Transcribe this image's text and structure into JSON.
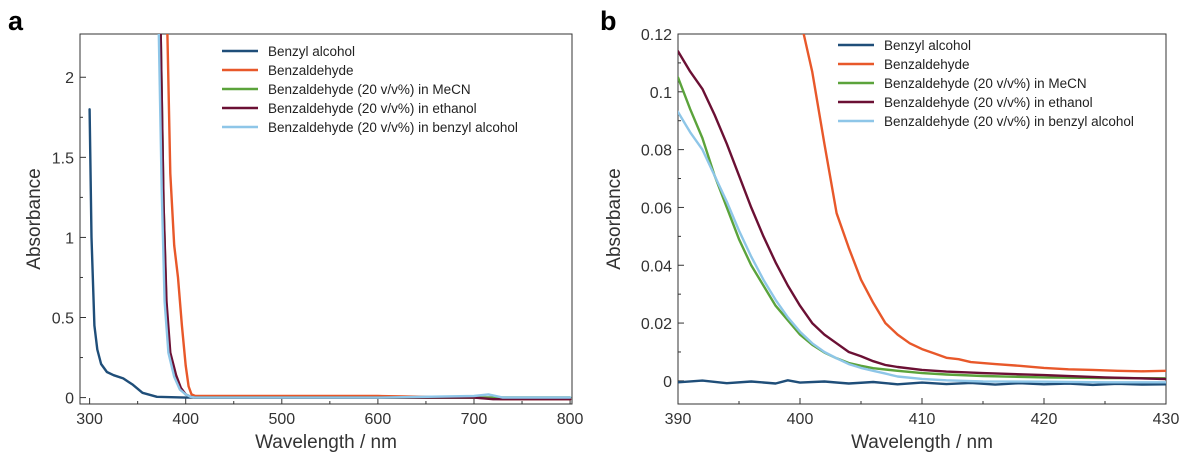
{
  "chart_data": [
    {
      "panel": "a",
      "type": "line",
      "xlabel": "Wavelength / nm",
      "ylabel": "Absorbance",
      "xlim": [
        290,
        802
      ],
      "ylim": [
        -0.04,
        2.27
      ],
      "xticks": [
        300,
        400,
        500,
        600,
        700,
        800
      ],
      "xtick_labels": [
        "300",
        "400",
        "500",
        "600",
        "700",
        "800"
      ],
      "yticks": [
        0,
        0.5,
        1,
        1.5,
        2
      ],
      "ytick_labels": [
        "0",
        "0.5",
        "1",
        "1.5",
        "2"
      ],
      "grid": false,
      "legend_position": "top-right",
      "series": [
        {
          "name": "Benzyl alcohol",
          "color": "#1f4e79",
          "points": [
            [
              300,
              1.8
            ],
            [
              302,
              1.0
            ],
            [
              305,
              0.45
            ],
            [
              308,
              0.3
            ],
            [
              312,
              0.21
            ],
            [
              318,
              0.16
            ],
            [
              325,
              0.14
            ],
            [
              335,
              0.12
            ],
            [
              345,
              0.08
            ],
            [
              355,
              0.03
            ],
            [
              370,
              0.005
            ],
            [
              400,
              0.0
            ],
            [
              500,
              0.0
            ],
            [
              600,
              0.0
            ],
            [
              700,
              0.0
            ],
            [
              800,
              0.0
            ]
          ]
        },
        {
          "name": "Benzaldehyde",
          "color": "#e8582a",
          "points": [
            [
              381,
              2.27
            ],
            [
              384,
              1.4
            ],
            [
              388,
              0.95
            ],
            [
              392,
              0.75
            ],
            [
              396,
              0.45
            ],
            [
              400,
              0.2
            ],
            [
              403,
              0.07
            ],
            [
              406,
              0.02
            ],
            [
              410,
              0.01
            ],
            [
              500,
              0.01
            ],
            [
              600,
              0.01
            ],
            [
              700,
              0.0
            ],
            [
              730,
              -0.01
            ],
            [
              800,
              -0.01
            ]
          ]
        },
        {
          "name": "Benzaldehyde (20 v/v%) in MeCN",
          "color": "#5ba33b",
          "points": [
            [
              374,
              2.27
            ],
            [
              377,
              1.2
            ],
            [
              380,
              0.55
            ],
            [
              384,
              0.25
            ],
            [
              390,
              0.12
            ],
            [
              395,
              0.05
            ],
            [
              400,
              0.02
            ],
            [
              405,
              0.005
            ],
            [
              410,
              0.0
            ],
            [
              500,
              0.0
            ],
            [
              600,
              0.0
            ],
            [
              700,
              0.0
            ],
            [
              800,
              0.0
            ]
          ]
        },
        {
          "name": "Benzaldehyde (20 v/v%) in ethanol",
          "color": "#6b1034",
          "points": [
            [
              374,
              2.27
            ],
            [
              377,
              1.2
            ],
            [
              380,
              0.6
            ],
            [
              384,
              0.28
            ],
            [
              390,
              0.14
            ],
            [
              395,
              0.06
            ],
            [
              400,
              0.02
            ],
            [
              405,
              0.005
            ],
            [
              410,
              0.0
            ],
            [
              500,
              0.0
            ],
            [
              600,
              0.0
            ],
            [
              700,
              0.0
            ],
            [
              720,
              -0.01
            ],
            [
              800,
              -0.01
            ]
          ]
        },
        {
          "name": "Benzaldehyde (20 v/v%) in benzyl alcohol",
          "color": "#8ec6e8",
          "points": [
            [
              372,
              2.27
            ],
            [
              375,
              1.3
            ],
            [
              378,
              0.6
            ],
            [
              382,
              0.28
            ],
            [
              388,
              0.13
            ],
            [
              394,
              0.05
            ],
            [
              400,
              0.02
            ],
            [
              405,
              0.005
            ],
            [
              410,
              0.0
            ],
            [
              500,
              0.0
            ],
            [
              600,
              0.0
            ],
            [
              700,
              0.01
            ],
            [
              715,
              0.02
            ],
            [
              730,
              0.0
            ],
            [
              800,
              0.0
            ]
          ]
        }
      ]
    },
    {
      "panel": "b",
      "type": "line",
      "xlabel": "Wavelength / nm",
      "ylabel": "Absorbance",
      "xlim": [
        390,
        430
      ],
      "ylim": [
        -0.008,
        0.12
      ],
      "xticks": [
        390,
        400,
        410,
        420,
        430
      ],
      "xtick_labels": [
        "390",
        "400",
        "410",
        "420",
        "430"
      ],
      "yticks": [
        0,
        0.02,
        0.04,
        0.06,
        0.08,
        0.1,
        0.12
      ],
      "ytick_labels": [
        "0",
        "0.02",
        "0.04",
        "0.06",
        "0.08",
        "0.1",
        "0.12"
      ],
      "grid": false,
      "legend_position": "top-right",
      "series": [
        {
          "name": "Benzyl alcohol",
          "color": "#1f4e79",
          "points": [
            [
              390,
              -0.0005
            ],
            [
              392,
              0.0001
            ],
            [
              394,
              -0.0008
            ],
            [
              396,
              -0.0002
            ],
            [
              398,
              -0.0009
            ],
            [
              399,
              0.0002
            ],
            [
              400,
              -0.0006
            ],
            [
              402,
              -0.0002
            ],
            [
              404,
              -0.0009
            ],
            [
              406,
              -0.0004
            ],
            [
              408,
              -0.0012
            ],
            [
              410,
              -0.0006
            ],
            [
              412,
              -0.0011
            ],
            [
              414,
              -0.0007
            ],
            [
              416,
              -0.0013
            ],
            [
              418,
              -0.0008
            ],
            [
              420,
              -0.0012
            ],
            [
              422,
              -0.0009
            ],
            [
              424,
              -0.0014
            ],
            [
              426,
              -0.001
            ],
            [
              428,
              -0.0013
            ],
            [
              430,
              -0.0012
            ]
          ]
        },
        {
          "name": "Benzaldehyde",
          "color": "#e8582a",
          "points": [
            [
              400.3,
              0.12
            ],
            [
              401,
              0.107
            ],
            [
              402,
              0.082
            ],
            [
              403,
              0.058
            ],
            [
              404,
              0.046
            ],
            [
              405,
              0.035
            ],
            [
              406,
              0.027
            ],
            [
              407,
              0.02
            ],
            [
              408,
              0.016
            ],
            [
              409,
              0.013
            ],
            [
              410,
              0.011
            ],
            [
              411,
              0.0095
            ],
            [
              412,
              0.008
            ],
            [
              413,
              0.0075
            ],
            [
              414,
              0.0065
            ],
            [
              416,
              0.0058
            ],
            [
              418,
              0.0052
            ],
            [
              420,
              0.0045
            ],
            [
              422,
              0.004
            ],
            [
              424,
              0.0038
            ],
            [
              426,
              0.0035
            ],
            [
              428,
              0.0033
            ],
            [
              430,
              0.0035
            ]
          ]
        },
        {
          "name": "Benzaldehyde (20 v/v%) in MeCN",
          "color": "#5ba33b",
          "points": [
            [
              390,
              0.105
            ],
            [
              391,
              0.094
            ],
            [
              392,
              0.084
            ],
            [
              393,
              0.071
            ],
            [
              394,
              0.06
            ],
            [
              395,
              0.049
            ],
            [
              396,
              0.04
            ],
            [
              397,
              0.033
            ],
            [
              398,
              0.026
            ],
            [
              399,
              0.021
            ],
            [
              400,
              0.016
            ],
            [
              401,
              0.0125
            ],
            [
              402,
              0.0098
            ],
            [
              403,
              0.0078
            ],
            [
              404,
              0.0062
            ],
            [
              405,
              0.0052
            ],
            [
              406,
              0.0044
            ],
            [
              408,
              0.0035
            ],
            [
              410,
              0.0027
            ],
            [
              412,
              0.0022
            ],
            [
              415,
              0.0017
            ],
            [
              420,
              0.0012
            ],
            [
              425,
              0.001
            ],
            [
              430,
              0.0009
            ]
          ]
        },
        {
          "name": "Benzaldehyde (20 v/v%) in ethanol",
          "color": "#6b1034",
          "points": [
            [
              390,
              0.114
            ],
            [
              391,
              0.107
            ],
            [
              392,
              0.101
            ],
            [
              393,
              0.092
            ],
            [
              394,
              0.082
            ],
            [
              395,
              0.071
            ],
            [
              396,
              0.06
            ],
            [
              397,
              0.05
            ],
            [
              398,
              0.041
            ],
            [
              399,
              0.033
            ],
            [
              400,
              0.026
            ],
            [
              401,
              0.02
            ],
            [
              402,
              0.016
            ],
            [
              403,
              0.013
            ],
            [
              404,
              0.01
            ],
            [
              405,
              0.0085
            ],
            [
              406,
              0.0068
            ],
            [
              407,
              0.0055
            ],
            [
              408,
              0.0048
            ],
            [
              410,
              0.0038
            ],
            [
              412,
              0.0032
            ],
            [
              415,
              0.0027
            ],
            [
              420,
              0.002
            ],
            [
              425,
              0.0012
            ],
            [
              430,
              0.0006
            ]
          ]
        },
        {
          "name": "Benzaldehyde (20 v/v%) in benzyl alcohol",
          "color": "#8ec6e8",
          "points": [
            [
              390,
              0.093
            ],
            [
              391,
              0.086
            ],
            [
              392,
              0.08
            ],
            [
              393,
              0.071
            ],
            [
              394,
              0.062
            ],
            [
              395,
              0.052
            ],
            [
              396,
              0.043
            ],
            [
              397,
              0.035
            ],
            [
              398,
              0.028
            ],
            [
              399,
              0.022
            ],
            [
              400,
              0.017
            ],
            [
              401,
              0.013
            ],
            [
              402,
              0.01
            ],
            [
              403,
              0.0078
            ],
            [
              404,
              0.0058
            ],
            [
              405,
              0.0045
            ],
            [
              406,
              0.0035
            ],
            [
              407,
              0.0025
            ],
            [
              408,
              0.0015
            ],
            [
              410,
              0.0007
            ],
            [
              412,
              0.0002
            ],
            [
              415,
              -0.0002
            ],
            [
              420,
              -0.0003
            ],
            [
              425,
              -0.0005
            ],
            [
              430,
              -0.0005
            ]
          ]
        }
      ]
    }
  ]
}
